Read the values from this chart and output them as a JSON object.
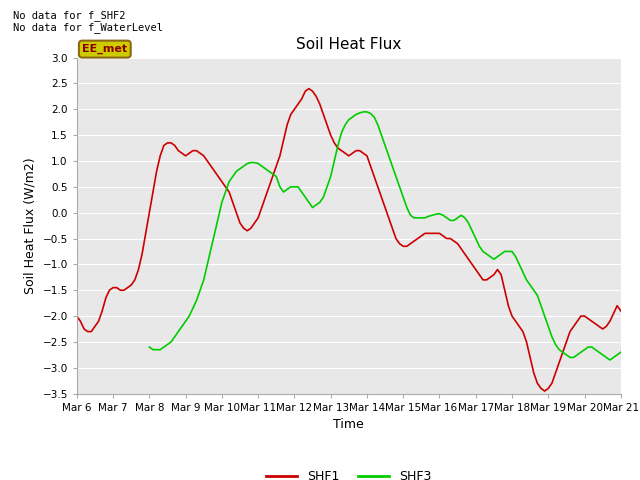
{
  "title": "Soil Heat Flux",
  "xlabel": "Time",
  "ylabel": "Soil Heat Flux (W/m2)",
  "ylim": [
    -3.5,
    3.0
  ],
  "yticks": [
    -3.5,
    -3.0,
    -2.5,
    -2.0,
    -1.5,
    -1.0,
    -0.5,
    0.0,
    0.5,
    1.0,
    1.5,
    2.0,
    2.5,
    3.0
  ],
  "xtick_labels": [
    "Mar 6",
    "Mar 7",
    "Mar 8",
    "Mar 9",
    "Mar 10",
    "Mar 11",
    "Mar 12",
    "Mar 13",
    "Mar 14",
    "Mar 15",
    "Mar 16",
    "Mar 17",
    "Mar 18",
    "Mar 19",
    "Mar 20",
    "Mar 21"
  ],
  "plot_bg_color": "#e8e8e8",
  "shf1_color": "#cc0000",
  "shf3_color": "#00cc00",
  "annotation_text": "No data for f_SHF2\nNo data for f_WaterLevel",
  "legend_box_text": "EE_met",
  "legend_box_facecolor": "#cccc00",
  "legend_box_edgecolor": "#8b6914",
  "shf1_x": [
    0,
    0.1,
    0.2,
    0.3,
    0.4,
    0.5,
    0.6,
    0.7,
    0.8,
    0.9,
    1.0,
    1.1,
    1.2,
    1.3,
    1.4,
    1.5,
    1.6,
    1.7,
    1.8,
    1.9,
    2.0,
    2.1,
    2.2,
    2.3,
    2.4,
    2.5,
    2.6,
    2.7,
    2.8,
    2.9,
    3.0,
    3.1,
    3.2,
    3.3,
    3.4,
    3.5,
    3.6,
    3.7,
    3.8,
    3.9,
    4.0,
    4.1,
    4.2,
    4.3,
    4.4,
    4.5,
    4.6,
    4.7,
    4.8,
    4.9,
    5.0,
    5.1,
    5.2,
    5.3,
    5.4,
    5.5,
    5.6,
    5.7,
    5.8,
    5.9,
    6.0,
    6.1,
    6.2,
    6.3,
    6.4,
    6.5,
    6.6,
    6.7,
    6.8,
    6.9,
    7.0,
    7.1,
    7.2,
    7.3,
    7.4,
    7.5,
    7.6,
    7.7,
    7.8,
    7.9,
    8.0,
    8.1,
    8.2,
    8.3,
    8.4,
    8.5,
    8.6,
    8.7,
    8.8,
    8.9,
    9.0,
    9.1,
    9.2,
    9.3,
    9.4,
    9.5,
    9.6,
    9.7,
    9.8,
    9.9,
    10.0,
    10.1,
    10.2,
    10.3,
    10.4,
    10.5,
    10.6,
    10.7,
    10.8,
    10.9,
    11.0,
    11.1,
    11.2,
    11.3,
    11.4,
    11.5,
    11.6,
    11.7,
    11.8,
    11.9,
    12.0,
    12.1,
    12.2,
    12.3,
    12.4,
    12.5,
    12.6,
    12.7,
    12.8,
    12.9,
    13.0,
    13.1,
    13.2,
    13.3,
    13.4,
    13.5,
    13.6,
    13.7,
    13.8,
    13.9,
    14.0,
    14.1,
    14.2,
    14.3,
    14.4,
    14.5,
    14.6,
    14.7,
    14.8,
    14.9,
    15.0
  ],
  "shf1_y": [
    -2.0,
    -2.1,
    -2.25,
    -2.3,
    -2.3,
    -2.2,
    -2.1,
    -1.9,
    -1.65,
    -1.5,
    -1.45,
    -1.45,
    -1.5,
    -1.5,
    -1.45,
    -1.4,
    -1.3,
    -1.1,
    -0.8,
    -0.4,
    0.0,
    0.4,
    0.8,
    1.1,
    1.3,
    1.35,
    1.35,
    1.3,
    1.2,
    1.15,
    1.1,
    1.15,
    1.2,
    1.2,
    1.15,
    1.1,
    1.0,
    0.9,
    0.8,
    0.7,
    0.6,
    0.5,
    0.4,
    0.2,
    0.0,
    -0.2,
    -0.3,
    -0.35,
    -0.3,
    -0.2,
    -0.1,
    0.1,
    0.3,
    0.5,
    0.7,
    0.9,
    1.1,
    1.4,
    1.7,
    1.9,
    2.0,
    2.1,
    2.2,
    2.35,
    2.4,
    2.35,
    2.25,
    2.1,
    1.9,
    1.7,
    1.5,
    1.35,
    1.25,
    1.2,
    1.15,
    1.1,
    1.15,
    1.2,
    1.2,
    1.15,
    1.1,
    0.9,
    0.7,
    0.5,
    0.3,
    0.1,
    -0.1,
    -0.3,
    -0.5,
    -0.6,
    -0.65,
    -0.65,
    -0.6,
    -0.55,
    -0.5,
    -0.45,
    -0.4,
    -0.4,
    -0.4,
    -0.4,
    -0.4,
    -0.45,
    -0.5,
    -0.5,
    -0.55,
    -0.6,
    -0.7,
    -0.8,
    -0.9,
    -1.0,
    -1.1,
    -1.2,
    -1.3,
    -1.3,
    -1.25,
    -1.2,
    -1.1,
    -1.2,
    -1.5,
    -1.8,
    -2.0,
    -2.1,
    -2.2,
    -2.3,
    -2.5,
    -2.8,
    -3.1,
    -3.3,
    -3.4,
    -3.45,
    -3.4,
    -3.3,
    -3.1,
    -2.9,
    -2.7,
    -2.5,
    -2.3,
    -2.2,
    -2.1,
    -2.0,
    -2.0,
    -2.05,
    -2.1,
    -2.15,
    -2.2,
    -2.25,
    -2.2,
    -2.1,
    -1.95,
    -1.8,
    -1.9
  ],
  "shf3_x": [
    2.0,
    2.1,
    2.2,
    2.3,
    2.4,
    2.5,
    2.6,
    2.7,
    2.8,
    2.9,
    3.0,
    3.1,
    3.2,
    3.3,
    3.4,
    3.5,
    3.6,
    3.7,
    3.8,
    3.9,
    4.0,
    4.1,
    4.2,
    4.3,
    4.4,
    4.5,
    4.6,
    4.7,
    4.8,
    4.9,
    5.0,
    5.1,
    5.2,
    5.3,
    5.4,
    5.5,
    5.6,
    5.7,
    5.8,
    5.9,
    6.0,
    6.1,
    6.2,
    6.3,
    6.4,
    6.5,
    6.6,
    6.7,
    6.8,
    6.9,
    7.0,
    7.1,
    7.2,
    7.3,
    7.4,
    7.5,
    7.6,
    7.7,
    7.8,
    7.9,
    8.0,
    8.1,
    8.2,
    8.3,
    8.4,
    8.5,
    8.6,
    8.7,
    8.8,
    8.9,
    9.0,
    9.1,
    9.2,
    9.3,
    9.4,
    9.5,
    9.6,
    9.7,
    9.8,
    9.9,
    10.0,
    10.1,
    10.2,
    10.3,
    10.4,
    10.5,
    10.6,
    10.7,
    10.8,
    10.9,
    11.0,
    11.1,
    11.2,
    11.3,
    11.4,
    11.5,
    11.6,
    11.7,
    11.8,
    11.9,
    12.0,
    12.1,
    12.2,
    12.3,
    12.4,
    12.5,
    12.6,
    12.7,
    12.8,
    12.9,
    13.0,
    13.1,
    13.2,
    13.3,
    13.4,
    13.5,
    13.6,
    13.7,
    13.8,
    13.9,
    14.0,
    14.1,
    14.2,
    14.3,
    14.4,
    14.5,
    14.6,
    14.7,
    14.8,
    14.9,
    15.0
  ],
  "shf3_y": [
    -2.6,
    -2.65,
    -2.65,
    -2.65,
    -2.6,
    -2.55,
    -2.5,
    -2.4,
    -2.3,
    -2.2,
    -2.1,
    -2.0,
    -1.85,
    -1.7,
    -1.5,
    -1.3,
    -1.0,
    -0.7,
    -0.4,
    -0.1,
    0.2,
    0.4,
    0.6,
    0.7,
    0.8,
    0.85,
    0.9,
    0.95,
    0.97,
    0.97,
    0.95,
    0.9,
    0.85,
    0.8,
    0.75,
    0.7,
    0.5,
    0.4,
    0.45,
    0.5,
    0.5,
    0.5,
    0.4,
    0.3,
    0.2,
    0.1,
    0.15,
    0.2,
    0.3,
    0.5,
    0.7,
    1.0,
    1.3,
    1.55,
    1.7,
    1.8,
    1.85,
    1.9,
    1.93,
    1.95,
    1.95,
    1.92,
    1.85,
    1.7,
    1.5,
    1.3,
    1.1,
    0.9,
    0.7,
    0.5,
    0.3,
    0.1,
    -0.05,
    -0.1,
    -0.1,
    -0.1,
    -0.1,
    -0.07,
    -0.05,
    -0.03,
    -0.02,
    -0.05,
    -0.1,
    -0.15,
    -0.15,
    -0.1,
    -0.05,
    -0.1,
    -0.2,
    -0.35,
    -0.5,
    -0.65,
    -0.75,
    -0.8,
    -0.85,
    -0.9,
    -0.85,
    -0.8,
    -0.75,
    -0.75,
    -0.75,
    -0.85,
    -1.0,
    -1.15,
    -1.3,
    -1.4,
    -1.5,
    -1.6,
    -1.8,
    -2.0,
    -2.2,
    -2.4,
    -2.55,
    -2.65,
    -2.7,
    -2.75,
    -2.8,
    -2.8,
    -2.75,
    -2.7,
    -2.65,
    -2.6,
    -2.6,
    -2.65,
    -2.7,
    -2.75,
    -2.8,
    -2.85,
    -2.8,
    -2.75,
    -2.7
  ]
}
